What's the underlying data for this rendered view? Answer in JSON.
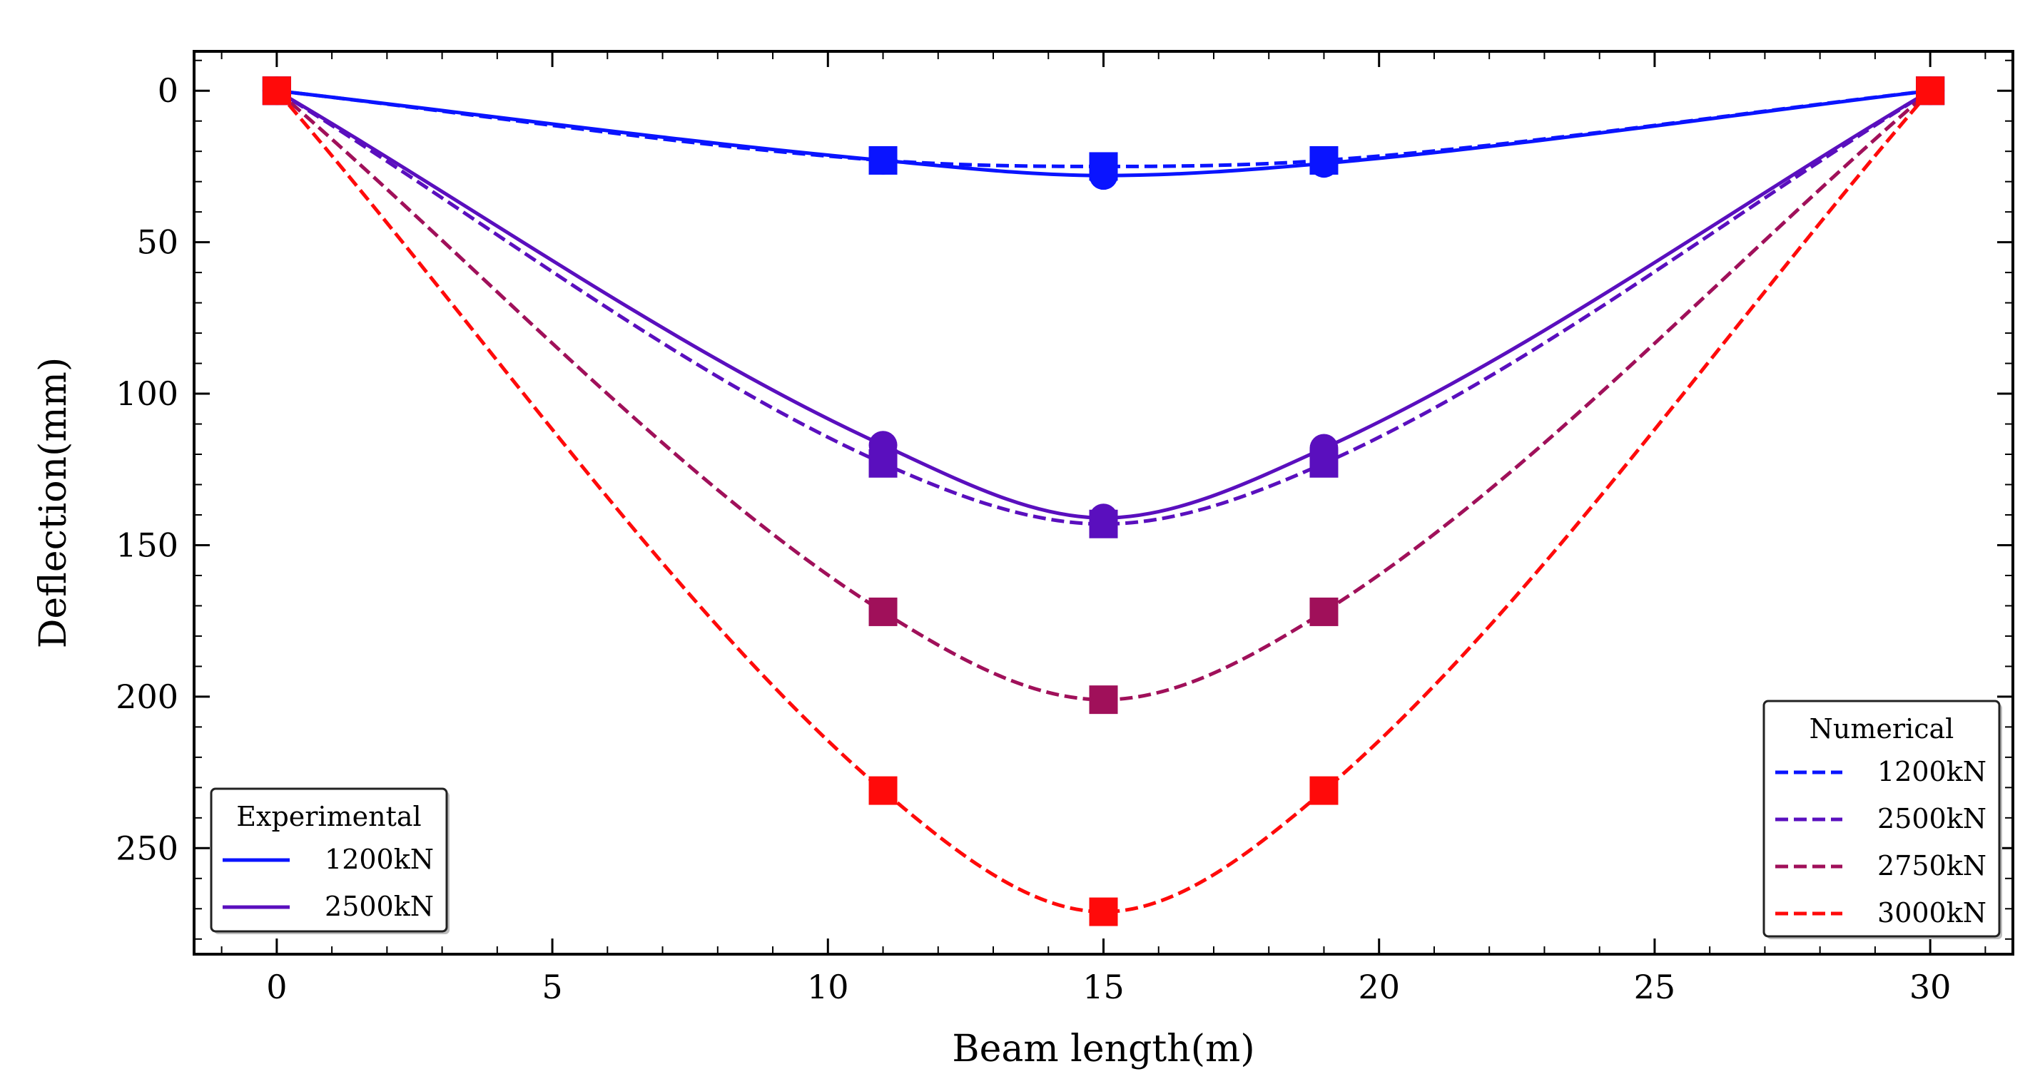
{
  "chart_data": {
    "type": "line",
    "xlabel": "Beam length(m)",
    "ylabel": "Deflection(mm)",
    "xlim": [
      -1.5,
      31.5
    ],
    "ylim": [
      285,
      -13
    ],
    "y_inverted": true,
    "x_ticks": [
      0,
      5,
      10,
      15,
      20,
      25,
      30
    ],
    "y_ticks": [
      0,
      50,
      100,
      150,
      200,
      250
    ],
    "series": [
      {
        "name": "1200kN",
        "group": "experimental",
        "style": "solid",
        "marker": "circle",
        "color": "#0a14ff",
        "x": [
          0,
          11,
          15,
          19,
          30
        ],
        "y": [
          0,
          23,
          28,
          24,
          0
        ]
      },
      {
        "name": "2500kN",
        "group": "experimental",
        "style": "solid",
        "marker": "circle",
        "color": "#5a0fbe",
        "x": [
          0,
          11,
          15,
          19,
          30
        ],
        "y": [
          0,
          117,
          141,
          118,
          0
        ]
      },
      {
        "name": "1200kN",
        "group": "numerical",
        "style": "dashed",
        "marker": "square",
        "color": "#0a14ff",
        "x": [
          0,
          11,
          15,
          19,
          30
        ],
        "y": [
          0,
          23,
          25,
          23,
          0
        ]
      },
      {
        "name": "2500kN",
        "group": "numerical",
        "style": "dashed",
        "marker": "square",
        "color": "#5a0fbe",
        "x": [
          0,
          11,
          15,
          19,
          30
        ],
        "y": [
          0,
          123,
          143,
          123,
          0
        ]
      },
      {
        "name": "2750kN",
        "group": "numerical",
        "style": "dashed",
        "marker": "square",
        "color": "#a0105a",
        "x": [
          0,
          11,
          15,
          19,
          30
        ],
        "y": [
          0,
          172,
          201,
          172,
          0
        ]
      },
      {
        "name": "3000kN",
        "group": "numerical",
        "style": "dashed",
        "marker": "square",
        "color": "#ff0a0a",
        "x": [
          0,
          11,
          15,
          19,
          30
        ],
        "y": [
          0,
          231,
          271,
          231,
          0
        ]
      }
    ],
    "legends": [
      {
        "title": "Experimental",
        "position": "lower-left",
        "entries": [
          "1200kN",
          "2500kN"
        ]
      },
      {
        "title": "Numerical",
        "position": "lower-right",
        "entries": [
          "1200kN",
          "2500kN",
          "2750kN",
          "3000kN"
        ]
      }
    ]
  }
}
